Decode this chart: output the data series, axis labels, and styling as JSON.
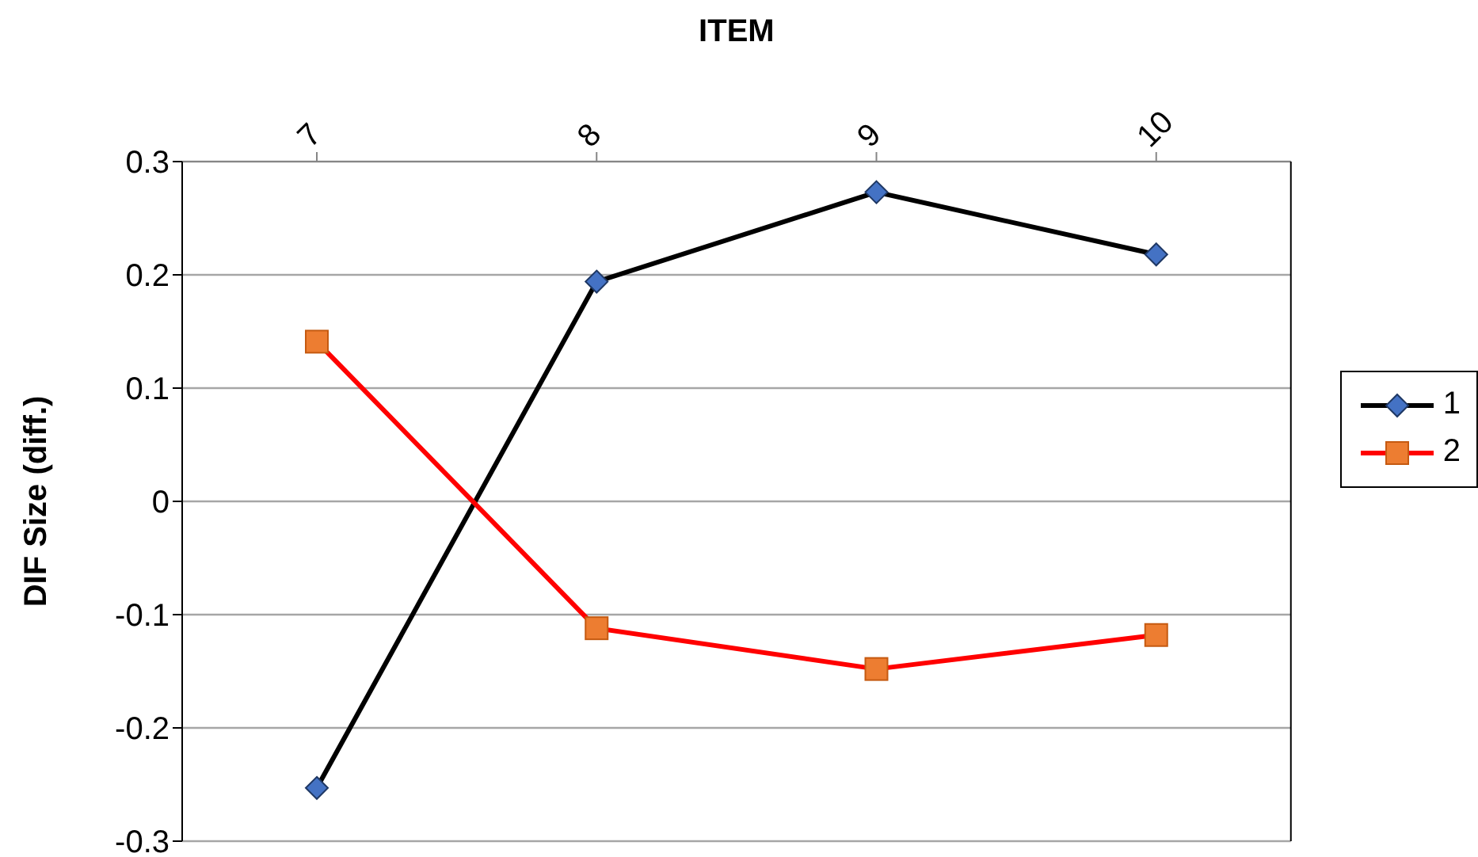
{
  "chart_data": {
    "type": "line",
    "xlabel": "ITEM",
    "ylabel": "DIF Size (diff.)",
    "categories": [
      "7",
      "8",
      "9",
      "10"
    ],
    "series": [
      {
        "name": "1",
        "color": "#000000",
        "marker": "diamond",
        "values": [
          -0.253,
          0.194,
          0.273,
          0.218
        ]
      },
      {
        "name": "2",
        "color": "#ff0000",
        "marker": "square",
        "values": [
          0.141,
          -0.112,
          -0.148,
          -0.118
        ]
      }
    ],
    "ylim": [
      -0.3,
      0.3
    ],
    "yticks": [
      -0.3,
      -0.2,
      -0.1,
      0,
      0.1,
      0.2,
      0.3
    ],
    "grid": "y",
    "legend": "right"
  }
}
